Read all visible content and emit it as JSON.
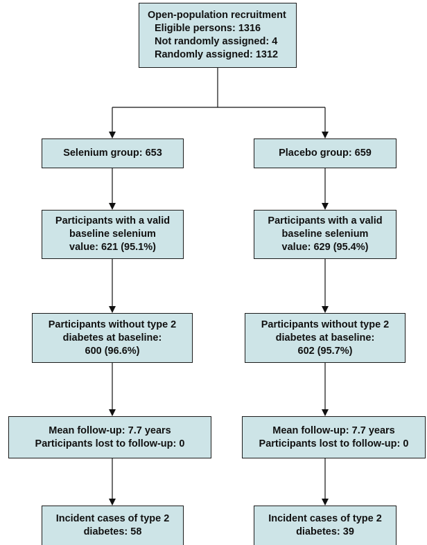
{
  "nodes": [
    {
      "lines": [
        "Open-population recruitment",
        "Eligible persons: 1316",
        "Not randomly assigned: 4",
        "Randomly assigned: 1312"
      ]
    },
    {
      "lines": [
        "Selenium group: 653"
      ]
    },
    {
      "lines": [
        "Placebo group: 659"
      ]
    },
    {
      "lines": [
        "Participants with a valid",
        "baseline selenium",
        "value: 621 (95.1%)"
      ]
    },
    {
      "lines": [
        "Participants with a valid",
        "baseline selenium",
        "value: 629 (95.4%)"
      ]
    },
    {
      "lines": [
        "Participants without type 2",
        "diabetes at baseline:",
        "600 (96.6%)"
      ]
    },
    {
      "lines": [
        "Participants without type 2",
        "diabetes at baseline:",
        "602 (95.7%)"
      ]
    },
    {
      "lines": [
        "Mean follow-up: 7.7 years",
        "Participants lost to follow-up: 0"
      ]
    },
    {
      "lines": [
        "Mean follow-up: 7.7 years",
        "Participants lost to follow-up: 0"
      ]
    },
    {
      "lines": [
        "Incident cases of type 2",
        "diabetes: 58"
      ]
    },
    {
      "lines": [
        "Incident cases of type 2",
        "diabetes: 39"
      ]
    }
  ]
}
